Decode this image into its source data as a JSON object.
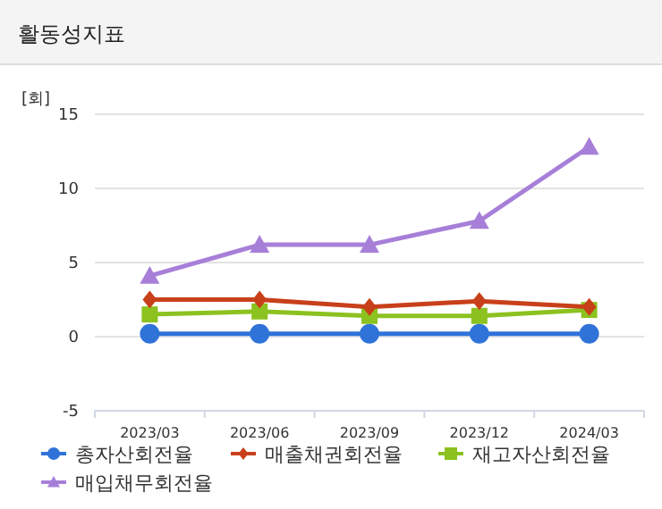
{
  "chart_data": {
    "type": "line",
    "title": "활동성지표",
    "ylabel": "[회]",
    "categories": [
      "2023/03",
      "2023/06",
      "2023/09",
      "2023/12",
      "2024/03"
    ],
    "series": [
      {
        "name": "총자산회전율",
        "color": "#2f73d9",
        "marker": "circle",
        "values": [
          0.2,
          0.2,
          0.2,
          0.2,
          0.2
        ]
      },
      {
        "name": "매출채권회전율",
        "color": "#c8401a",
        "marker": "diamond",
        "values": [
          2.5,
          2.5,
          2.0,
          2.4,
          2.0
        ]
      },
      {
        "name": "재고자산회전율",
        "color": "#8cc21f",
        "marker": "square",
        "values": [
          1.5,
          1.7,
          1.4,
          1.4,
          1.8
        ]
      },
      {
        "name": "매입채무회전율",
        "color": "#a77fd8",
        "marker": "triangle",
        "values": [
          4.1,
          6.2,
          6.2,
          7.8,
          12.8
        ]
      }
    ],
    "ylim": [
      -5,
      15
    ],
    "yticks": [
      -5,
      0,
      5,
      10,
      15
    ],
    "grid": "y",
    "legend": "bottom",
    "line_style": "solid"
  }
}
